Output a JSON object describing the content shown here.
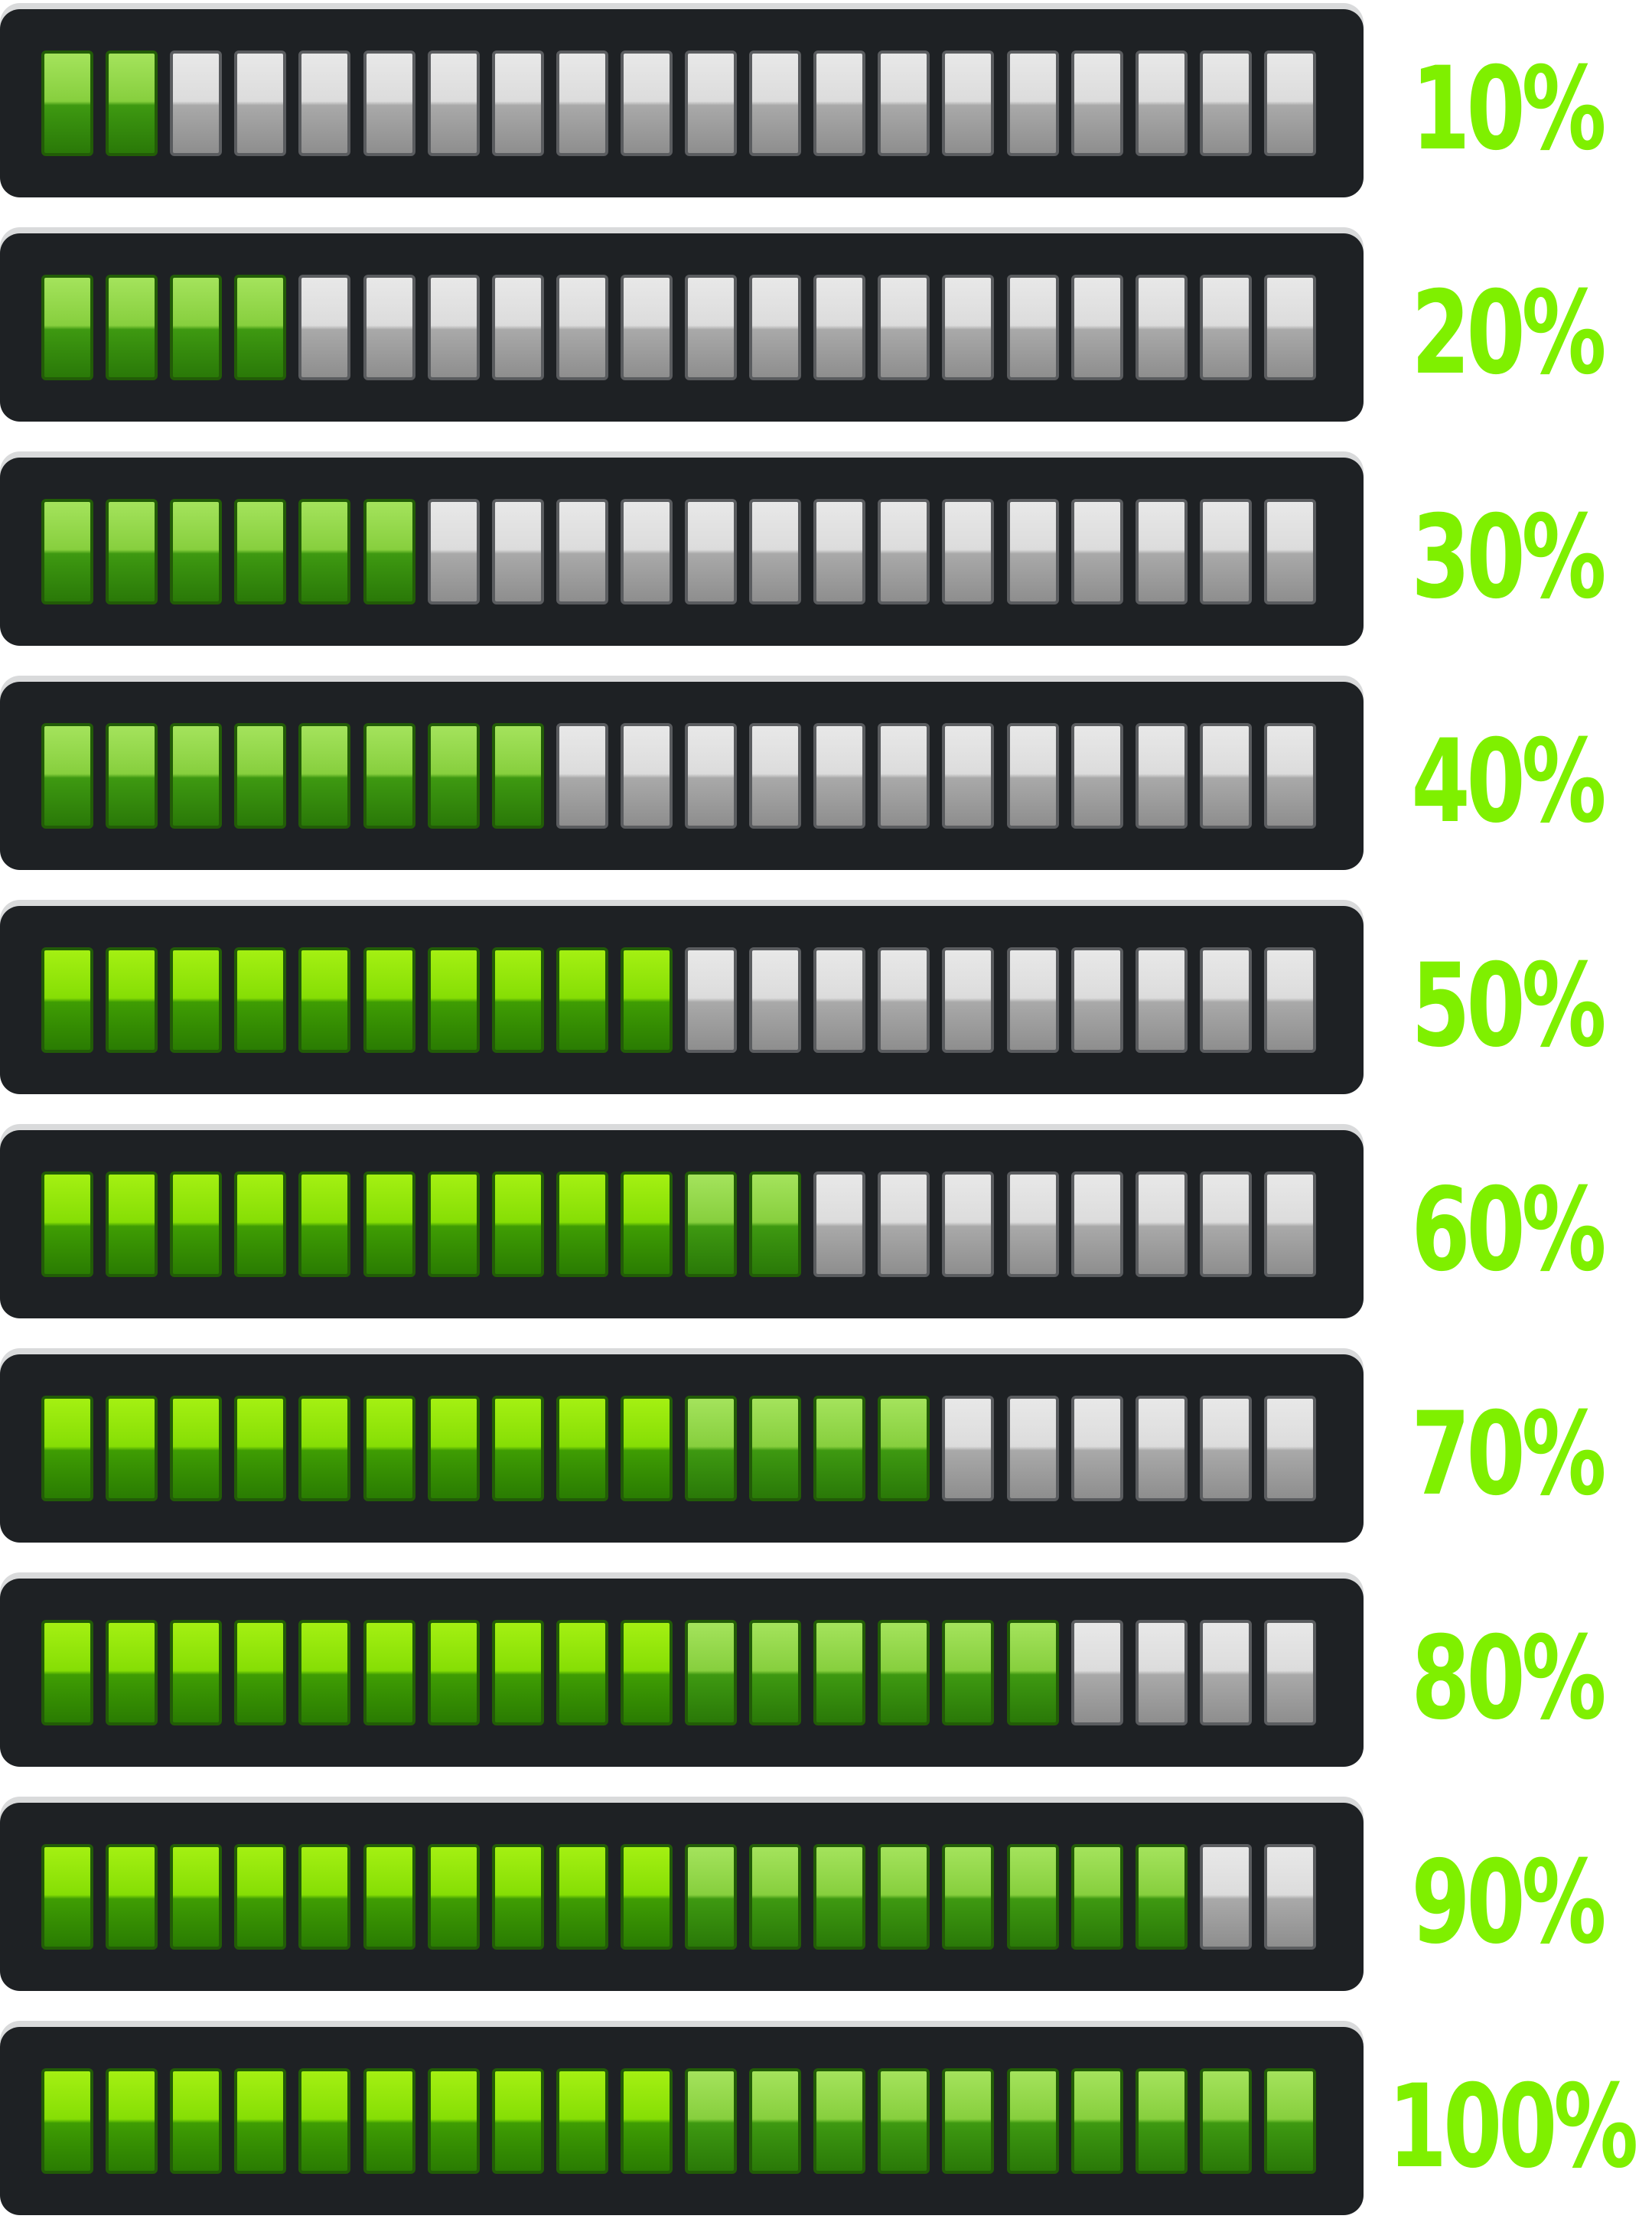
{
  "segments_per_bar": 20,
  "colors": {
    "track": "#1e2124",
    "label": "#7ff000",
    "filled_bright": "#86de05",
    "filled_soft": "#87cf3e",
    "empty": "#dcdcdc"
  },
  "bars": [
    {
      "label": "10%",
      "progress": 0.1
    },
    {
      "label": "20%",
      "progress": 0.2
    },
    {
      "label": "30%",
      "progress": 0.3
    },
    {
      "label": "40%",
      "progress": 0.4
    },
    {
      "label": "50%",
      "progress": 0.5
    },
    {
      "label": "60%",
      "progress": 0.6
    },
    {
      "label": "70%",
      "progress": 0.7
    },
    {
      "label": "80%",
      "progress": 0.8
    },
    {
      "label": "90%",
      "progress": 0.9
    },
    {
      "label": "100%",
      "progress": 1.0
    }
  ]
}
